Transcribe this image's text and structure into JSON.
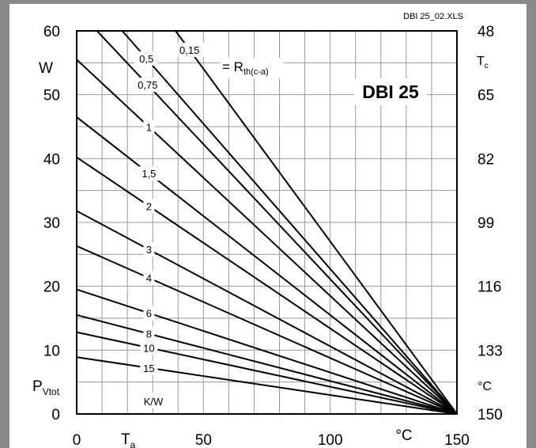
{
  "chart_data": {
    "type": "line",
    "file_label": "DBI 25_02.XLS",
    "device_label": "DBI 25",
    "xlabel_symbol": "T",
    "xlabel_sub": "a",
    "x_unit": "°C",
    "ylabel_symbol": "P",
    "ylabel_sub": "Vtot",
    "y_unit": "W",
    "y2label_symbol": "T",
    "y2label_sub": "c",
    "y2_unit": "°C",
    "xlim": [
      0,
      150
    ],
    "ylim": [
      0,
      60
    ],
    "x_ticks": [
      {
        "value": 0,
        "label": "0"
      },
      {
        "value": 50,
        "label": "50"
      },
      {
        "value": 100,
        "label": "100"
      },
      {
        "value": 150,
        "label": "150"
      }
    ],
    "y_ticks": [
      {
        "value": 0,
        "label": "0"
      },
      {
        "value": 10,
        "label": "10"
      },
      {
        "value": 20,
        "label": "20"
      },
      {
        "value": 30,
        "label": "30"
      },
      {
        "value": 40,
        "label": "40"
      },
      {
        "value": 50,
        "label": "50"
      },
      {
        "value": 60,
        "label": "60"
      }
    ],
    "y2_ticks": [
      {
        "value": 0,
        "label": "150"
      },
      {
        "value": 10,
        "label": "133"
      },
      {
        "value": 20,
        "label": "116"
      },
      {
        "value": 30,
        "label": "99"
      },
      {
        "value": 40,
        "label": "82"
      },
      {
        "value": 50,
        "label": "65"
      },
      {
        "value": 60,
        "label": "48"
      }
    ],
    "grid": true,
    "grid_x_step": 10,
    "grid_y_step": 5,
    "rth_legend_prefix": "= R",
    "rth_legend_sub": "th(c-a)",
    "units_label": "K/W",
    "series": [
      {
        "name": "0,15",
        "label_t": 44.5,
        "points": [
          [
            150,
            0
          ],
          [
            39,
            60
          ]
        ]
      },
      {
        "name": "0,5",
        "label_t": 27.5,
        "points": [
          [
            150,
            0
          ],
          [
            18,
            60
          ]
        ]
      },
      {
        "name": "0,75",
        "label_t": 28,
        "points": [
          [
            150,
            0
          ],
          [
            8,
            60
          ]
        ]
      },
      {
        "name": "1",
        "label_t": 28.5,
        "points": [
          [
            150,
            0
          ],
          [
            0,
            55.5
          ]
        ]
      },
      {
        "name": "1,5",
        "label_t": 28.5,
        "points": [
          [
            150,
            0
          ],
          [
            0,
            46.5
          ]
        ]
      },
      {
        "name": "2",
        "label_t": 28.5,
        "points": [
          [
            150,
            0
          ],
          [
            0,
            40.2
          ]
        ]
      },
      {
        "name": "3",
        "label_t": 28.5,
        "points": [
          [
            150,
            0
          ],
          [
            0,
            31.8
          ]
        ]
      },
      {
        "name": "4",
        "label_t": 28.5,
        "points": [
          [
            150,
            0
          ],
          [
            0,
            26.3
          ]
        ]
      },
      {
        "name": "6",
        "label_t": 28.5,
        "points": [
          [
            150,
            0
          ],
          [
            0,
            19.5
          ]
        ]
      },
      {
        "name": "8",
        "label_t": 28.5,
        "points": [
          [
            150,
            0
          ],
          [
            0,
            15.5
          ]
        ]
      },
      {
        "name": "10",
        "label_t": 28.5,
        "points": [
          [
            150,
            0
          ],
          [
            0,
            12.8
          ]
        ]
      },
      {
        "name": "15",
        "label_t": 28.5,
        "points": [
          [
            150,
            0
          ],
          [
            0,
            8.9
          ]
        ]
      }
    ]
  }
}
